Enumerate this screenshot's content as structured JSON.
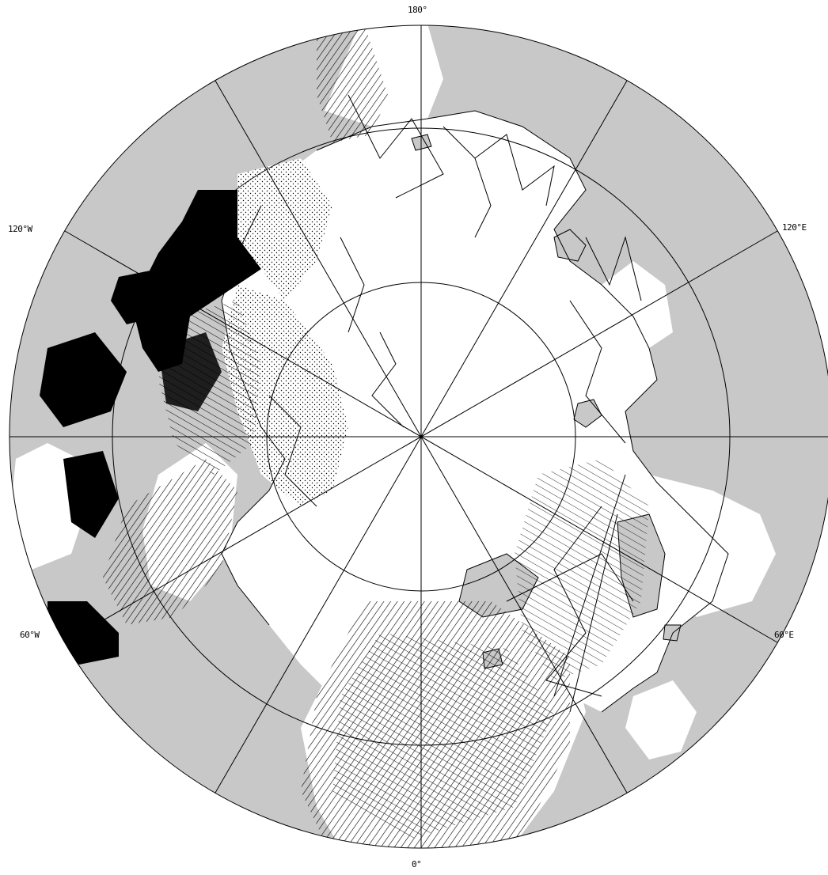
{
  "map": {
    "projection": "north-polar-stereographic",
    "land_color": "#c8c8c8",
    "ocean_color": "#ffffff",
    "track_color": "#000000",
    "meridian_spacing_degrees": 30,
    "parallels_shown_degrees": [
      80,
      70,
      60
    ]
  },
  "labels": {
    "lon_180": "180°",
    "lon_0": "0°",
    "lon_120w": "120°W",
    "lon_120e": "120°E",
    "lon_60w": "60°W",
    "lon_60e": "60°E"
  }
}
